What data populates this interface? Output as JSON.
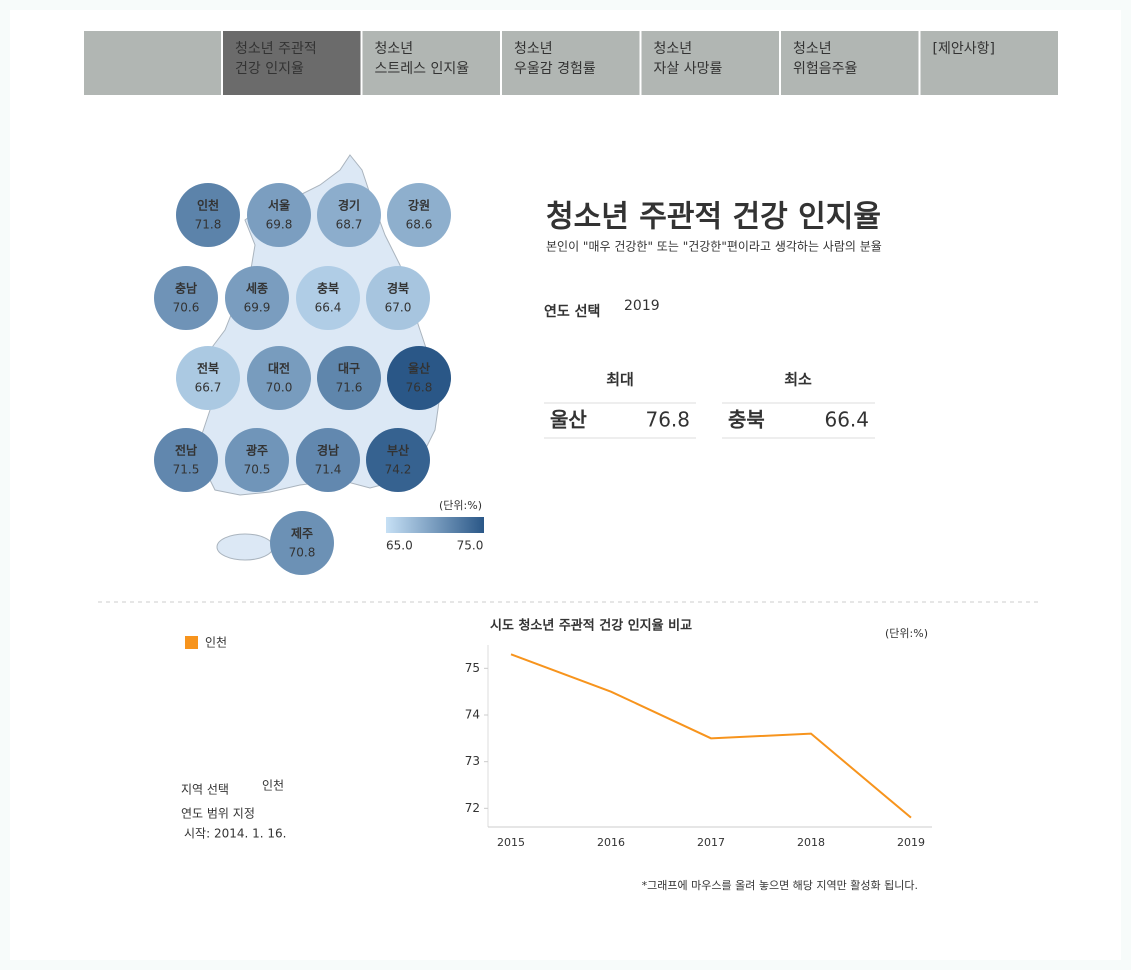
{
  "nav": [
    [
      "청소년 주관적",
      "건강 인지율"
    ],
    [
      "청소년",
      "스트레스 인지율"
    ],
    [
      "청소년",
      "우울감 경험률"
    ],
    [
      "청소년",
      "자살 사망률"
    ],
    [
      "청소년",
      "위험음주율"
    ],
    [
      "[제안사항]"
    ]
  ],
  "nav_active": 0,
  "map": {
    "regions": [
      {
        "name": "인천",
        "value": 71.8,
        "label": "71.8"
      },
      {
        "name": "서울",
        "value": 69.8,
        "label": "69.8"
      },
      {
        "name": "경기",
        "value": 68.7,
        "label": "68.7"
      },
      {
        "name": "강원",
        "value": 68.6,
        "label": "68.6"
      },
      {
        "name": "충남",
        "value": 70.6,
        "label": "70.6"
      },
      {
        "name": "세종",
        "value": 69.9,
        "label": "69.9"
      },
      {
        "name": "충북",
        "value": 66.4,
        "label": "66.4"
      },
      {
        "name": "경북",
        "value": 67.0,
        "label": "67.0"
      },
      {
        "name": "전북",
        "value": 66.7,
        "label": "66.7"
      },
      {
        "name": "대전",
        "value": 70.0,
        "label": "70.0"
      },
      {
        "name": "대구",
        "value": 71.6,
        "label": "71.6"
      },
      {
        "name": "울산",
        "value": 76.8,
        "label": "76.8"
      },
      {
        "name": "전남",
        "value": 71.5,
        "label": "71.5"
      },
      {
        "name": "광주",
        "value": 70.5,
        "label": "70.5"
      },
      {
        "name": "경남",
        "value": 71.4,
        "label": "71.4"
      },
      {
        "name": "부산",
        "value": 74.2,
        "label": "74.2"
      },
      {
        "name": "제주",
        "value": 70.8,
        "label": "70.8"
      }
    ],
    "unit": "(단위:%)",
    "scale": [
      {
        "value": 65,
        "label": "65.0"
      },
      {
        "value": 75,
        "label": "75.0"
      }
    ],
    "colors": [
      "#c6e0f5",
      "#2a5787"
    ]
  },
  "header": {
    "title": "청소년 주관적 건강 인지율",
    "subtitle": "본인이 \"매우 건강한\" 또는 \"건강한\"편이라고 생각하는 사람의 분율"
  },
  "year_select": {
    "label": "연도 선택",
    "value": "2019"
  },
  "extremes": {
    "max": {
      "heading": "최대",
      "region": "울산",
      "value": 76.8
    },
    "min": {
      "heading": "최소",
      "region": "충북",
      "value": 66.4
    }
  },
  "filters": {
    "region_label": "지역 선택",
    "region": "인천",
    "range_label": "연도 범위 지정",
    "start": "시작: 2014. 1. 16."
  },
  "chart_data": {
    "type": "line",
    "title": "시도 청소년 주관적 건강 인지율 비교",
    "unit_label": "(단위:%)",
    "categories": [
      "2015",
      "2016",
      "2017",
      "2018",
      "2019"
    ],
    "series": [
      {
        "name": "인천",
        "color": "#f7941d",
        "values": [
          75.3,
          74.5,
          73.5,
          73.6,
          71.8
        ]
      }
    ],
    "ylim": [
      71.6,
      75.5
    ],
    "yticks": [
      72,
      73,
      74,
      75
    ],
    "note": "*그래프에 마우스를 올려 놓으면 해당 지역만 활성화 됩니다."
  }
}
